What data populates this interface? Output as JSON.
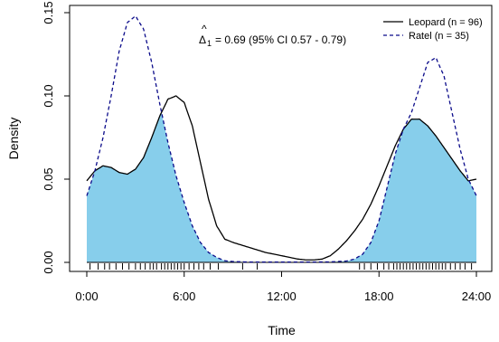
{
  "chart_data": {
    "type": "line",
    "title": "",
    "xlabel": "Time",
    "ylabel": "Density",
    "xlim": [
      0,
      24
    ],
    "ylim": [
      0,
      0.15
    ],
    "x_ticks": [
      {
        "value": 0,
        "label": "0:00"
      },
      {
        "value": 6,
        "label": "6:00"
      },
      {
        "value": 12,
        "label": "12:00"
      },
      {
        "value": 18,
        "label": "18:00"
      },
      {
        "value": 24,
        "label": "24:00"
      }
    ],
    "y_ticks": [
      {
        "value": 0.0,
        "label": "0.00"
      },
      {
        "value": 0.05,
        "label": "0.05"
      },
      {
        "value": 0.1,
        "label": "0.10"
      },
      {
        "value": 0.15,
        "label": "0.15"
      }
    ],
    "annotation": {
      "symbol": "Δ",
      "hat": "^",
      "subscript": "1",
      "text": "= 0.69 (95% CI 0.57 - 0.79)"
    },
    "legend_position": "top-right",
    "series": [
      {
        "name": "Leopard (n = 96)",
        "style": "solid",
        "color": "#000000",
        "x": [
          0,
          0.5,
          1,
          1.5,
          2,
          2.5,
          3,
          3.5,
          4,
          4.5,
          5,
          5.5,
          6,
          6.5,
          7,
          7.5,
          8,
          8.5,
          9,
          10,
          11,
          12,
          12.5,
          13,
          13.5,
          14,
          14.5,
          15,
          15.5,
          16,
          16.5,
          17,
          17.5,
          18,
          18.5,
          19,
          19.5,
          20,
          20.5,
          21,
          21.5,
          22,
          22.5,
          23,
          23.5,
          24
        ],
        "y": [
          0.049,
          0.055,
          0.058,
          0.057,
          0.054,
          0.053,
          0.056,
          0.063,
          0.075,
          0.088,
          0.098,
          0.1,
          0.096,
          0.082,
          0.06,
          0.038,
          0.022,
          0.014,
          0.012,
          0.009,
          0.006,
          0.004,
          0.003,
          0.002,
          0.0015,
          0.0015,
          0.002,
          0.004,
          0.008,
          0.013,
          0.019,
          0.026,
          0.035,
          0.046,
          0.058,
          0.07,
          0.08,
          0.086,
          0.086,
          0.082,
          0.076,
          0.069,
          0.062,
          0.055,
          0.049,
          0.05
        ]
      },
      {
        "name": "Ratel (n = 35)",
        "style": "dashed",
        "color": "#0b0b8a",
        "x": [
          0,
          0.5,
          1,
          1.5,
          2,
          2.5,
          3,
          3.5,
          4,
          4.5,
          5,
          5.5,
          6,
          6.5,
          7,
          7.5,
          8,
          8.5,
          9,
          10,
          11,
          12,
          13,
          14,
          15,
          16,
          16.5,
          17,
          17.5,
          18,
          18.5,
          19,
          19.5,
          20,
          20.5,
          21,
          21.5,
          22,
          22.5,
          23,
          23.5,
          24
        ],
        "y": [
          0.04,
          0.055,
          0.075,
          0.1,
          0.127,
          0.144,
          0.148,
          0.14,
          0.12,
          0.095,
          0.072,
          0.052,
          0.036,
          0.022,
          0.012,
          0.006,
          0.003,
          0.001,
          0.0005,
          0.0002,
          0.0002,
          0.0002,
          0.0002,
          0.0002,
          0.0003,
          0.0008,
          0.002,
          0.005,
          0.012,
          0.025,
          0.045,
          0.065,
          0.08,
          0.09,
          0.105,
          0.12,
          0.123,
          0.112,
          0.09,
          0.068,
          0.05,
          0.04
        ]
      }
    ],
    "overlap_fill_color": "#87ceeb",
    "rug": {
      "name": "observation rug",
      "x": [
        0.2,
        0.7,
        1.1,
        1.4,
        1.8,
        2.2,
        2.6,
        3.0,
        3.3,
        3.6,
        3.9,
        4.1,
        4.3,
        4.6,
        4.8,
        5.0,
        5.2,
        5.4,
        5.6,
        5.8,
        6.0,
        6.3,
        6.6,
        6.9,
        7.2,
        7.6,
        8.1,
        9.6,
        10.5,
        16.8,
        17.1,
        17.5,
        17.9,
        18.3,
        18.6,
        18.9,
        19.1,
        19.3,
        19.5,
        19.7,
        19.9,
        20.1,
        20.3,
        20.5,
        20.7,
        20.9,
        21.1,
        21.3,
        21.5,
        21.7,
        21.9,
        22.1,
        22.4,
        22.7,
        23.0,
        23.3,
        23.7
      ]
    }
  }
}
